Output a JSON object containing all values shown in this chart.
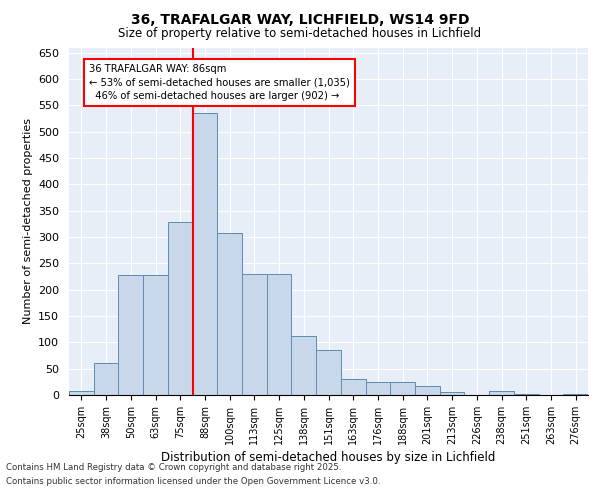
{
  "title_line1": "36, TRAFALGAR WAY, LICHFIELD, WS14 9FD",
  "title_line2": "Size of property relative to semi-detached houses in Lichfield",
  "xlabel": "Distribution of semi-detached houses by size in Lichfield",
  "ylabel": "Number of semi-detached properties",
  "categories": [
    "25sqm",
    "38sqm",
    "50sqm",
    "63sqm",
    "75sqm",
    "88sqm",
    "100sqm",
    "113sqm",
    "125sqm",
    "138sqm",
    "151sqm",
    "163sqm",
    "176sqm",
    "188sqm",
    "201sqm",
    "213sqm",
    "226sqm",
    "238sqm",
    "251sqm",
    "263sqm",
    "276sqm"
  ],
  "values": [
    8,
    60,
    228,
    228,
    328,
    535,
    308,
    230,
    230,
    113,
    85,
    30,
    25,
    25,
    18,
    5,
    0,
    8,
    2,
    0,
    2
  ],
  "bar_color": "#c8d8ea",
  "bar_edge_color": "#5b8db0",
  "red_line_index": 5,
  "property_label": "36 TRAFALGAR WAY: 86sqm",
  "pct_smaller": 53,
  "n_smaller": "1,035",
  "pct_larger": 46,
  "n_larger": "902",
  "ylim": [
    0,
    660
  ],
  "yticks": [
    0,
    50,
    100,
    150,
    200,
    250,
    300,
    350,
    400,
    450,
    500,
    550,
    600,
    650
  ],
  "background_color": "#e8eef8",
  "grid_color": "#ffffff",
  "footer_line1": "Contains HM Land Registry data © Crown copyright and database right 2025.",
  "footer_line2": "Contains public sector information licensed under the Open Government Licence v3.0."
}
